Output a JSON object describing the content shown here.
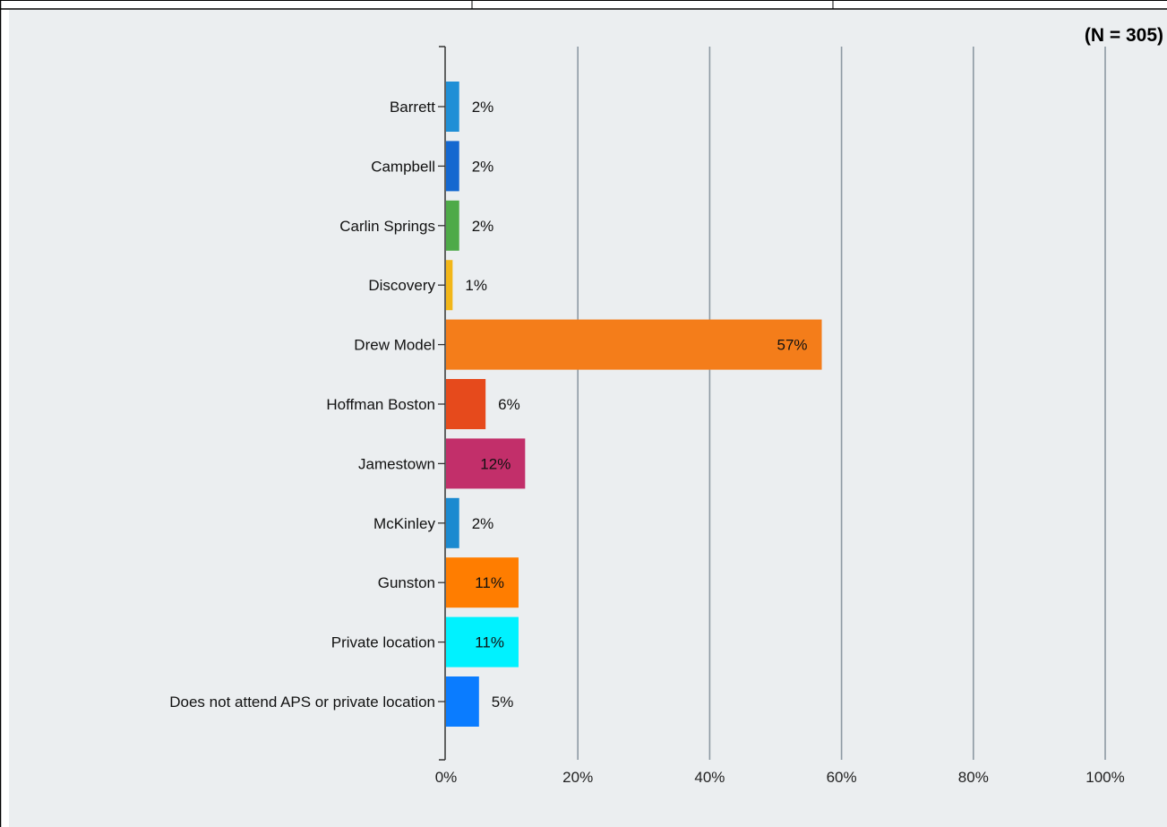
{
  "chart_data": {
    "type": "bar",
    "orientation": "horizontal",
    "annotation": "(N = 305)",
    "categories": [
      "Barrett",
      "Campbell",
      "Carlin Springs",
      "Discovery",
      "Drew Model",
      "Hoffman Boston",
      "Jamestown",
      "McKinley",
      "Gunston",
      "Private location",
      "Does not attend APS or private location"
    ],
    "values": [
      2,
      2,
      2,
      1,
      57,
      6,
      12,
      2,
      11,
      11,
      5
    ],
    "data_labels": [
      "2%",
      "2%",
      "2%",
      "1%",
      "57%",
      "6%",
      "12%",
      "2%",
      "11%",
      "11%",
      "5%"
    ],
    "colors": [
      "#1f8fd6",
      "#1468d0",
      "#4eaa48",
      "#f2b619",
      "#f47d1a",
      "#e64a1c",
      "#c22f6a",
      "#1b8ad0",
      "#ff7d00",
      "#00f2ff",
      "#0a7cff"
    ],
    "xlim": [
      0,
      100
    ],
    "xticks": [
      "0%",
      "20%",
      "40%",
      "60%",
      "80%",
      "100%"
    ],
    "tick_values": [
      0,
      20,
      40,
      60,
      80,
      100
    ],
    "grid": true,
    "legend": "none"
  }
}
